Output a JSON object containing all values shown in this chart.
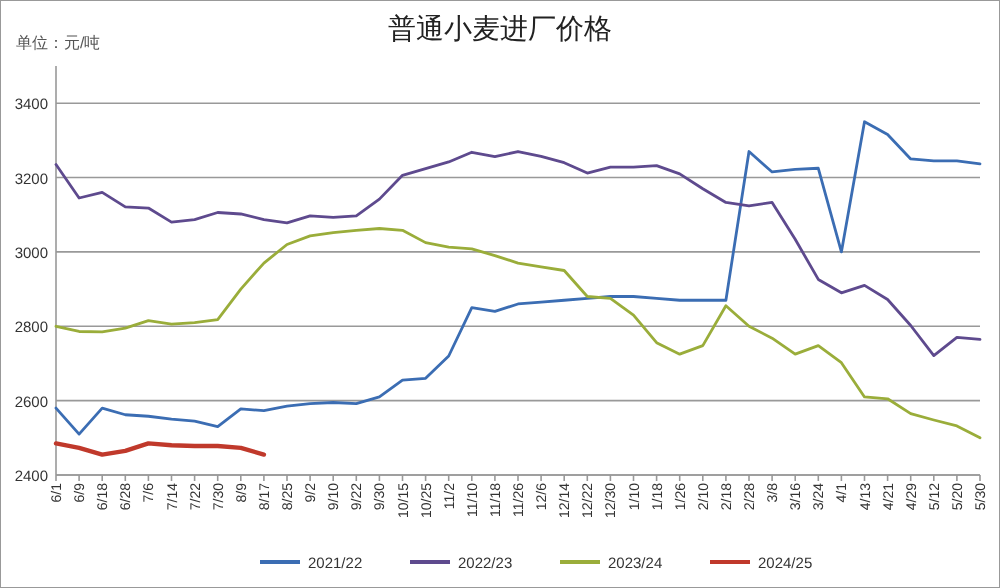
{
  "chart_data": {
    "type": "line",
    "title": "普通小麦进厂价格",
    "ylabel": "单位：元/吨",
    "categories": [
      "6/1",
      "6/9",
      "6/18",
      "6/28",
      "7/6",
      "7/14",
      "7/22",
      "7/30",
      "8/9",
      "8/17",
      "8/25",
      "9/2",
      "9/10",
      "9/22",
      "9/30",
      "10/15",
      "10/25",
      "11/2",
      "11/10",
      "11/18",
      "11/26",
      "12/6",
      "12/14",
      "12/22",
      "12/30",
      "1/10",
      "1/18",
      "1/26",
      "2/10",
      "2/18",
      "2/28",
      "3/8",
      "3/16",
      "3/24",
      "4/1",
      "4/13",
      "4/21",
      "4/29",
      "5/12",
      "5/20",
      "5/30"
    ],
    "series": [
      {
        "name": "2021/22",
        "color": "#3b6db3",
        "values": [
          2580,
          2510,
          2580,
          2562,
          2558,
          2550,
          2545,
          2530,
          2578,
          2573,
          2585,
          2592,
          2595,
          2592,
          2610,
          2655,
          2660,
          2720,
          2850,
          2840,
          2860,
          2865,
          2870,
          2875,
          2880,
          2880,
          2875,
          2870,
          2870,
          2870,
          3270,
          3215,
          3222,
          3225,
          3000,
          3350,
          3316,
          3250,
          3245,
          3245,
          3237
        ]
      },
      {
        "name": "2022/23",
        "color": "#5e4a8e",
        "values": [
          3235,
          3145,
          3160,
          3121,
          3118,
          3080,
          3087,
          3106,
          3102,
          3087,
          3078,
          3097,
          3093,
          3097,
          3142,
          3206,
          3224,
          3242,
          3268,
          3256,
          3270,
          3257,
          3240,
          3212,
          3228,
          3228,
          3232,
          3210,
          3170,
          3133,
          3124,
          3133,
          3034,
          2926,
          2890,
          2910,
          2872,
          2802,
          2721,
          2770,
          2765
        ]
      },
      {
        "name": "2023/24",
        "color": "#9aad3a",
        "values": [
          2800,
          2786,
          2785,
          2795,
          2815,
          2806,
          2810,
          2818,
          2900,
          2970,
          3020,
          3043,
          3052,
          3058,
          3063,
          3058,
          3025,
          3013,
          3008,
          2990,
          2970,
          2960,
          2950,
          2880,
          2875,
          2830,
          2756,
          2725,
          2748,
          2855,
          2800,
          2768,
          2725,
          2748,
          2702,
          2610,
          2605,
          2565,
          2548,
          2532,
          2500
        ]
      },
      {
        "name": "2024/25",
        "color": "#c0392b",
        "values": [
          2485,
          2473,
          2455,
          2465,
          2485,
          2480,
          2478,
          2478,
          2473,
          2455,
          null,
          null,
          null,
          null,
          null,
          null,
          null,
          null,
          null,
          null,
          null,
          null,
          null,
          null,
          null,
          null,
          null,
          null,
          null,
          null,
          null,
          null,
          null,
          null,
          null,
          null,
          null,
          null,
          null,
          null,
          null
        ]
      }
    ],
    "ylim": [
      2400,
      3500
    ],
    "yticks": [
      2400,
      2600,
      2800,
      3000,
      3200,
      3400
    ],
    "grid": "y",
    "legend": "bottom"
  }
}
